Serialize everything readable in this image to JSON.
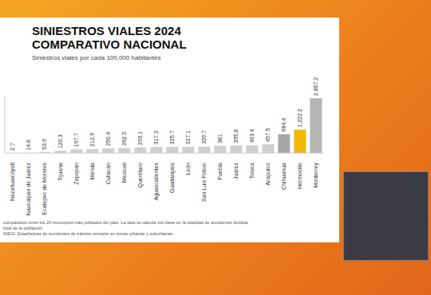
{
  "chart_data": {
    "type": "bar",
    "title": "SINIESTROS VIALES 2024",
    "subtitle": "COMPARATIVO NACIONAL",
    "y_label": "Siniestros viales por cada 100,000 habitantes",
    "annotations": [
      "comparativo entre los 20 municipios más poblados del país. La tasa se calcula con base en la totalidad de accidentes dividida",
      "total de la población.",
      "INEGI. Estadísticas de accidentes de tránsito terrestre en zonas urbanas y suburbanas."
    ],
    "categories": [
      "Nezahualcóyotl",
      "Naucalpan de Juárez",
      "Ecatepec de Morelos",
      "Tijuana",
      "Zapopan",
      "Mérida",
      "Culiacán",
      "Mexicali",
      "Querétaro",
      "Aguascalientes",
      "Guadalajara",
      "León",
      "San Luis Potosí",
      "Puebla",
      "Juárez",
      "Toluca",
      "Acapulco",
      "Chihuahua",
      "Hermosillo",
      "Monterrey"
    ],
    "values": [
      2.7,
      14.8,
      53.9,
      120.3,
      197.7,
      212.9,
      250.4,
      262.5,
      293.1,
      317.3,
      325.7,
      327.1,
      339.7,
      381,
      395.8,
      403.4,
      457.5,
      984.4,
      1222.2,
      2867.2
    ],
    "value_labels": [
      "2.7",
      "14.8",
      "53.9",
      "120.3",
      "197.7",
      "212.9",
      "250.4",
      "262.5",
      "293.1",
      "317.3",
      "325.7",
      "327.1",
      "339.7",
      "381",
      "395.8",
      "403.4",
      "457.5",
      "984.4",
      "1,222.2",
      "2,867.2"
    ],
    "colors": [
      "#cfcfcf",
      "#cfcfcf",
      "#cfcfcf",
      "#cfcfcf",
      "#cfcfcf",
      "#cfcfcf",
      "#cfcfcf",
      "#cfcfcf",
      "#cfcfcf",
      "#cfcfcf",
      "#cfcfcf",
      "#cfcfcf",
      "#cfcfcf",
      "#cfcfcf",
      "#cfcfcf",
      "#cfcfcf",
      "#cfcfcf",
      "#a6a6a6",
      "#f2b705",
      "#b5b5b5"
    ],
    "ylim": [
      0,
      3000
    ],
    "data_labels": true,
    "tick_labels": "x",
    "grid": false
  }
}
